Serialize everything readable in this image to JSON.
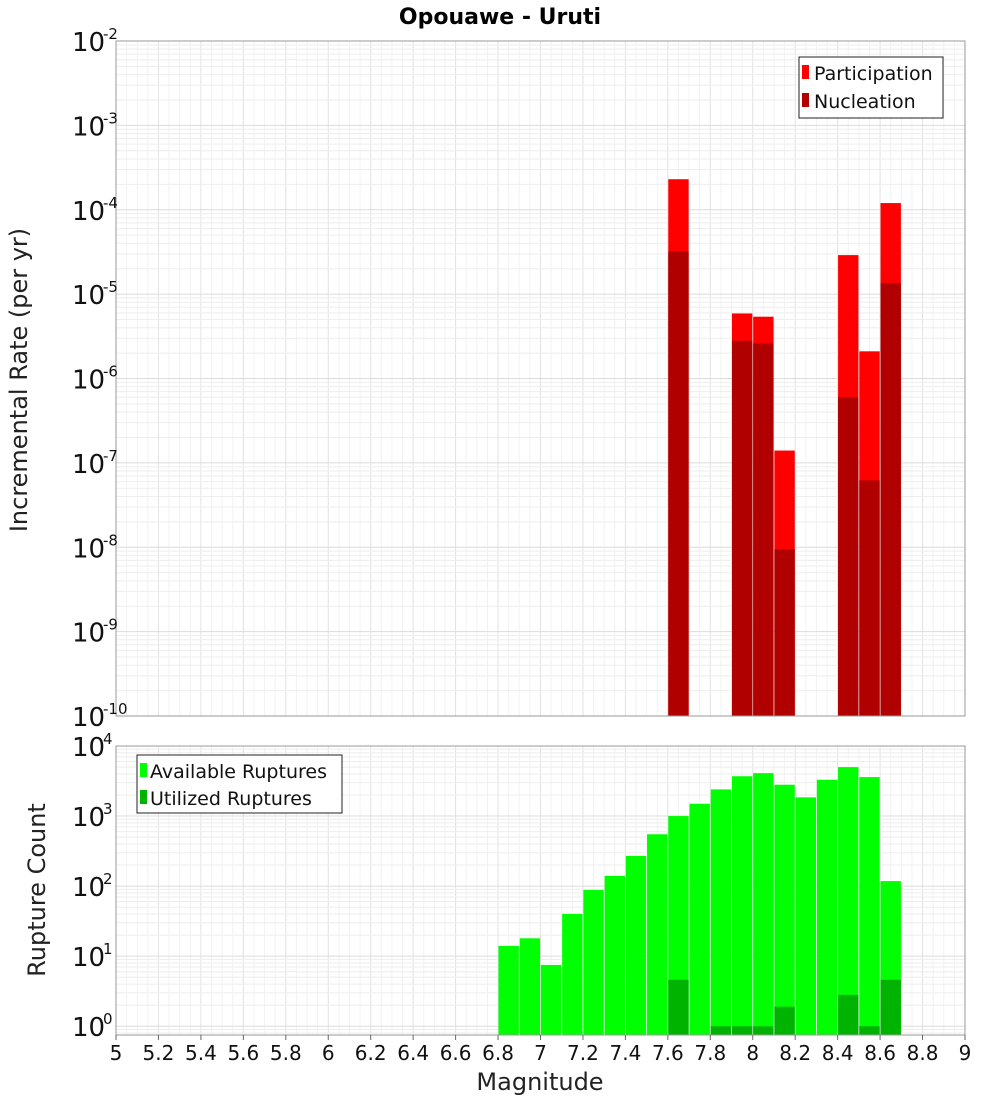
{
  "chart_data": [
    {
      "type": "bar",
      "title": "Opouawe - Uruti",
      "ylabel": "Incremental Rate (per yr)",
      "xlabel": "",
      "y_scale": "log",
      "ylim": [
        1e-10,
        0.01
      ],
      "xlim": [
        5,
        9
      ],
      "grid": true,
      "legend_position": "top-right",
      "x": [
        7.65,
        7.95,
        8.05,
        8.15,
        8.45,
        8.55,
        8.65
      ],
      "series": [
        {
          "name": "Participation",
          "color": "#ff0000",
          "values": [
            0.00023,
            5.9e-06,
            5.4e-06,
            1.4e-07,
            2.9e-05,
            2.1e-06,
            0.00012
          ]
        },
        {
          "name": "Nucleation",
          "color": "#b00000",
          "values": [
            3.2e-05,
            2.8e-06,
            2.6e-06,
            9.5e-09,
            6e-07,
            6.2e-08,
            1.35e-05
          ]
        }
      ]
    },
    {
      "type": "bar",
      "title": "",
      "ylabel": "Rupture Count",
      "xlabel": "Magnitude",
      "y_scale": "log",
      "ylim": [
        0.75,
        10000
      ],
      "xlim": [
        5,
        9
      ],
      "grid": true,
      "legend_position": "top-left",
      "x": [
        6.85,
        6.95,
        7.05,
        7.15,
        7.25,
        7.35,
        7.45,
        7.55,
        7.65,
        7.75,
        7.85,
        7.95,
        8.05,
        8.15,
        8.25,
        8.35,
        8.45,
        8.55,
        8.65
      ],
      "series": [
        {
          "name": "Available Ruptures",
          "color": "#00ff00",
          "values": [
            14,
            18,
            7.5,
            40,
            88,
            140,
            270,
            550,
            1000,
            1500,
            2400,
            3700,
            4100,
            2800,
            1850,
            3300,
            5000,
            3600,
            118
          ]
        },
        {
          "name": "Utilized Ruptures",
          "color": "#00b300",
          "values": [
            0,
            0,
            0,
            0,
            0,
            0,
            0,
            0,
            4.6,
            0,
            1,
            1,
            1,
            1.9,
            0,
            0,
            2.8,
            1,
            4.6
          ]
        }
      ]
    }
  ],
  "x_ticks": [
    "5",
    "5.2",
    "5.4",
    "5.6",
    "5.8",
    "6",
    "6.2",
    "6.4",
    "6.6",
    "6.8",
    "7",
    "7.2",
    "7.4",
    "7.6",
    "7.8",
    "8",
    "8.2",
    "8.4",
    "8.6",
    "8.8",
    "9"
  ],
  "x_tick_values": [
    5,
    5.2,
    5.4,
    5.6,
    5.8,
    6,
    6.2,
    6.4,
    6.6,
    6.8,
    7,
    7.2,
    7.4,
    7.6,
    7.8,
    8,
    8.2,
    8.4,
    8.6,
    8.8,
    9
  ],
  "top_y_ticks": [
    {
      "base": "10",
      "exp": "-2",
      "value": 0.01
    },
    {
      "base": "10",
      "exp": "-3",
      "value": 0.001
    },
    {
      "base": "10",
      "exp": "-4",
      "value": 0.0001
    },
    {
      "base": "10",
      "exp": "-5",
      "value": 1e-05
    },
    {
      "base": "10",
      "exp": "-6",
      "value": 1e-06
    },
    {
      "base": "10",
      "exp": "-7",
      "value": 1e-07
    },
    {
      "base": "10",
      "exp": "-8",
      "value": 1e-08
    },
    {
      "base": "10",
      "exp": "-9",
      "value": 1e-09
    },
    {
      "base": "10",
      "exp": "-10",
      "value": 1e-10
    }
  ],
  "bottom_y_ticks": [
    {
      "base": "10",
      "exp": "4",
      "value": 10000
    },
    {
      "base": "10",
      "exp": "3",
      "value": 1000
    },
    {
      "base": "10",
      "exp": "2",
      "value": 100
    },
    {
      "base": "10",
      "exp": "1",
      "value": 10
    },
    {
      "base": "10",
      "exp": "0",
      "value": 1
    }
  ]
}
